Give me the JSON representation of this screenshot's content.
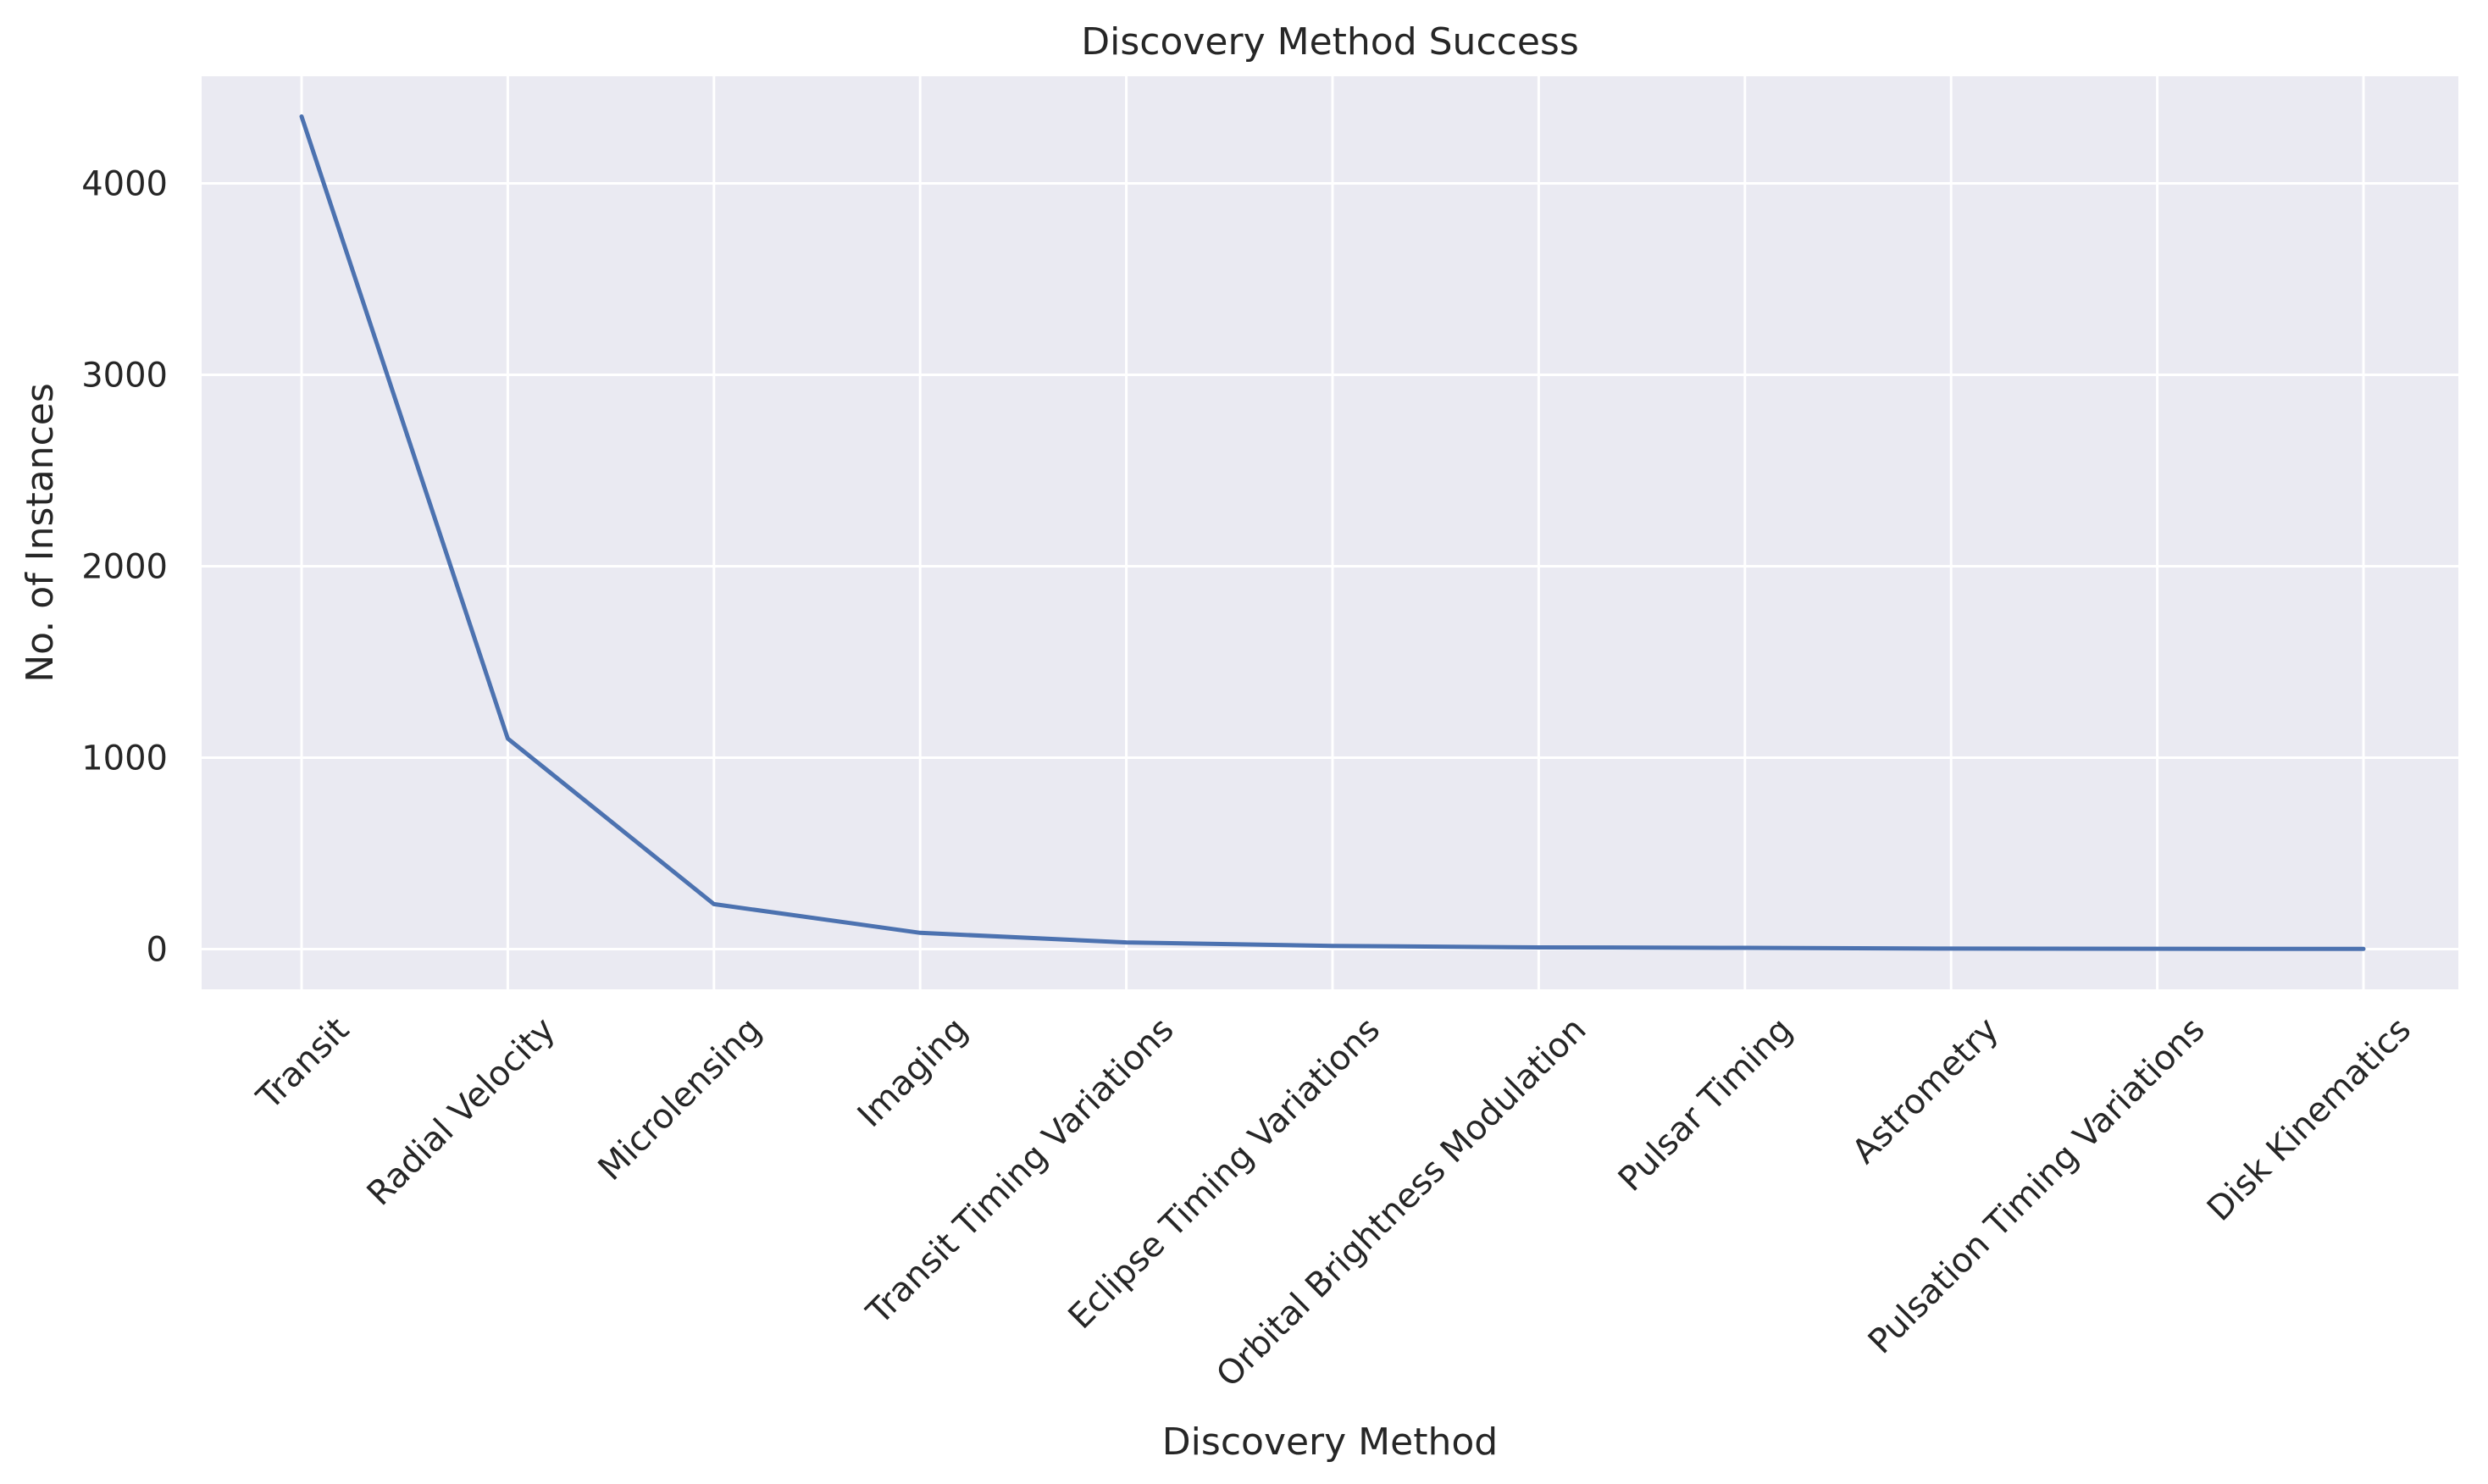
{
  "chart_data": {
    "type": "line",
    "title": "Discovery Method Success",
    "xlabel": "Discovery Method",
    "ylabel": "No. of Instances",
    "categories": [
      "Transit",
      "Radial Velocity",
      "Microlensing",
      "Imaging",
      "Transit Timing Variations",
      "Eclipse Timing Variations",
      "Orbital Brightness Modulation",
      "Pulsar Timing",
      "Astrometry",
      "Pulsation Timing Variations",
      "Disk Kinematics"
    ],
    "series": [
      {
        "values": [
          4350,
          1100,
          235,
          85,
          35,
          17,
          9,
          7,
          3,
          2,
          1
        ]
      }
    ],
    "ylim": [
      -210,
      4560
    ],
    "yticks": [
      0,
      1000,
      2000,
      3000,
      4000
    ],
    "ytick_labels": [
      "0",
      "1000",
      "2000",
      "3000",
      "4000"
    ],
    "grid": true,
    "legend": "none",
    "colors": {
      "background": "#eaeaf2",
      "grid": "#ffffff",
      "line": "#4c72b0"
    }
  }
}
